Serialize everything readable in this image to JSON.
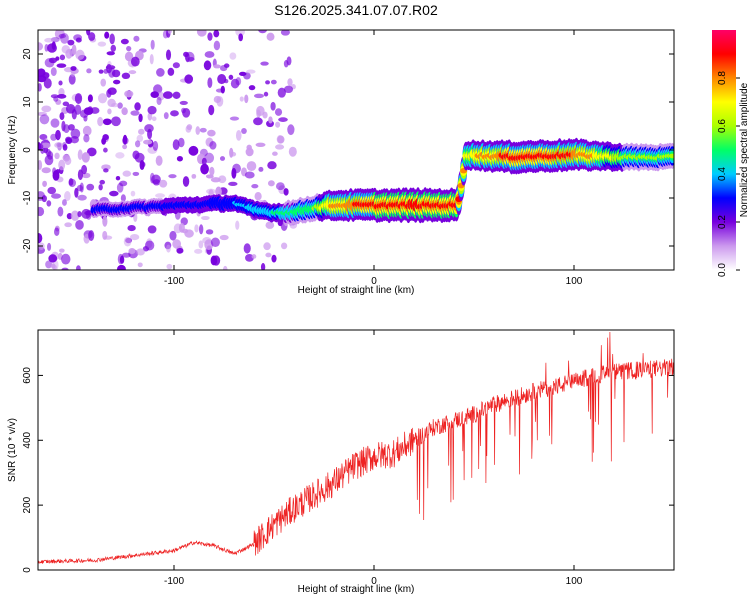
{
  "chart_data": [
    {
      "type": "heatmap",
      "title": "S126.2025.341.07.07.R02",
      "xlabel": "Height of straight line (km)",
      "ylabel": "Frequency (Hz)",
      "xlim": [
        -168,
        150
      ],
      "ylim": [
        -25,
        25
      ],
      "xticks": [
        -100,
        0,
        100
      ],
      "yticks": [
        -20,
        -10,
        0,
        10,
        20
      ],
      "colorbar": {
        "label": "Normalized spectral amplitude",
        "range": [
          0,
          1
        ],
        "ticks": [
          "0.0",
          "0.2",
          "0.4",
          "0.6",
          "0.8"
        ],
        "colors": [
          "#ffffff",
          "#cc99ee",
          "#7700dd",
          "#0000ff",
          "#00ccff",
          "#00ff66",
          "#aaff00",
          "#ffff00",
          "#ff8800",
          "#ff0000",
          "#ff0066"
        ]
      },
      "ridge": [
        {
          "x": -140,
          "freq": -12.5,
          "amp": 0.3
        },
        {
          "x": -120,
          "freq": -12.0,
          "amp": 0.28
        },
        {
          "x": -70,
          "freq": -11.0,
          "amp": 0.35
        },
        {
          "x": -60,
          "freq": -12.5,
          "amp": 0.4
        },
        {
          "x": -50,
          "freq": -13.0,
          "amp": 0.45
        },
        {
          "x": -40,
          "freq": -13.0,
          "amp": 0.5
        },
        {
          "x": -30,
          "freq": -12.0,
          "amp": 0.55
        },
        {
          "x": -20,
          "freq": -11.5,
          "amp": 0.8
        },
        {
          "x": 0,
          "freq": -11.5,
          "amp": 0.9
        },
        {
          "x": 20,
          "freq": -11.5,
          "amp": 0.95
        },
        {
          "x": 42,
          "freq": -11.5,
          "amp": 0.9
        },
        {
          "x": 46,
          "freq": -1.0,
          "amp": 0.7
        },
        {
          "x": 70,
          "freq": -1.5,
          "amp": 0.9
        },
        {
          "x": 100,
          "freq": -1.0,
          "amp": 0.85
        },
        {
          "x": 125,
          "freq": -1.5,
          "amp": 0.6
        },
        {
          "x": 150,
          "freq": -1.5,
          "amp": 0.55
        }
      ]
    },
    {
      "type": "line",
      "xlabel": "Height of straight line (km)",
      "ylabel": "SNR (10 * v/v)",
      "xlim": [
        -168,
        150
      ],
      "ylim": [
        0,
        740
      ],
      "xticks": [
        -100,
        0,
        100
      ],
      "yticks": [
        0,
        200,
        400,
        600
      ],
      "color": "#ee2222",
      "series": [
        {
          "name": "SNR",
          "points": [
            [
              -168,
              25
            ],
            [
              -140,
              30
            ],
            [
              -120,
              45
            ],
            [
              -100,
              60
            ],
            [
              -90,
              85
            ],
            [
              -80,
              75
            ],
            [
              -70,
              50
            ],
            [
              -60,
              80
            ],
            [
              -50,
              140
            ],
            [
              -40,
              190
            ],
            [
              -30,
              230
            ],
            [
              -20,
              270
            ],
            [
              -10,
              320
            ],
            [
              0,
              350
            ],
            [
              10,
              360
            ],
            [
              20,
              400
            ],
            [
              30,
              440
            ],
            [
              40,
              460
            ],
            [
              50,
              480
            ],
            [
              60,
              510
            ],
            [
              70,
              530
            ],
            [
              80,
              550
            ],
            [
              90,
              565
            ],
            [
              100,
              580
            ],
            [
              110,
              600
            ],
            [
              120,
              610
            ],
            [
              130,
              615
            ],
            [
              140,
              620
            ],
            [
              150,
              625
            ]
          ]
        }
      ]
    }
  ]
}
